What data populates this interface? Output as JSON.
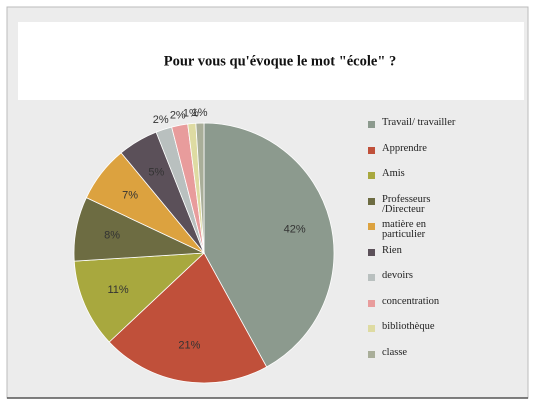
{
  "chart_data": {
    "type": "pie",
    "title": "Pour vous qu'évoque le mot \"école\" ?",
    "categories": [
      "Travail/ travailler",
      "Apprendre",
      "Amis",
      "Professeurs /Directeur",
      "matière en particulier",
      "Rien",
      "devoirs",
      "concentration",
      "bibliothèque",
      "classe"
    ],
    "values": [
      42,
      21,
      11,
      8,
      7,
      5,
      2,
      2,
      1,
      1
    ],
    "value_labels": [
      "42%",
      "21%",
      "11%",
      "8%",
      "7%",
      "5%",
      "2%",
      "2%",
      "1%",
      "1%"
    ],
    "colors": [
      "#8c9a8e",
      "#c0503a",
      "#a8a83e",
      "#6d6c42",
      "#dca23f",
      "#5b5059",
      "#b9c0bf",
      "#e89c9c",
      "#dedba2",
      "#a9ae99"
    ],
    "legend": "right"
  }
}
